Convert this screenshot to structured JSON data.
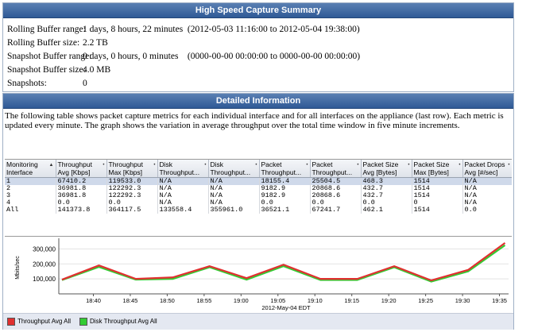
{
  "summary": {
    "title": "High Speed Capture Summary",
    "rows": [
      {
        "label": "Rolling Buffer range:",
        "value": "1 days, 8 hours, 22 minutes  (2012-05-03 11:16:00 to 2012-05-04 19:38:00)"
      },
      {
        "label": "Rolling Buffer size:",
        "value": "2.2 TB"
      },
      {
        "label": "Snapshot Buffer range:",
        "value": "0 days, 0 hours, 0 minutes    (0000-00-00 00:00:00 to 0000-00-00 00:00:00)"
      },
      {
        "label": "Snapshot Buffer size:",
        "value": "4.0 MB"
      },
      {
        "label": "Snapshots:",
        "value": "0"
      }
    ]
  },
  "detail": {
    "title": "Detailed Information",
    "description": "The following table shows packet capture metrics for each individual interface and for all interfaces on the appliance (last row). Each metric is updated every minute. The graph shows the variation in average throughput over the total time window in five minute increments."
  },
  "table": {
    "columns": [
      {
        "l1": "Monitoring",
        "l2": "Interface",
        "sort": "▲"
      },
      {
        "l1": "Throughput",
        "l2": "Avg [Kbps]",
        "sort": "•"
      },
      {
        "l1": "Throughput",
        "l2": "Max [Kbps]",
        "sort": "•"
      },
      {
        "l1": "Disk",
        "l2": "Throughput...",
        "sort": "•"
      },
      {
        "l1": "Disk",
        "l2": "Throughput...",
        "sort": "•"
      },
      {
        "l1": "Packet",
        "l2": "Throughput...",
        "sort": "•"
      },
      {
        "l1": "Packet",
        "l2": "Throughput...",
        "sort": "•"
      },
      {
        "l1": "Packet Size",
        "l2": "Avg [Bytes]",
        "sort": "•"
      },
      {
        "l1": "Packet Size",
        "l2": "Max [Bytes]",
        "sort": "•"
      },
      {
        "l1": "Packet Drops",
        "l2": "Avg [#/sec]",
        "sort": "•"
      }
    ],
    "rows": [
      [
        "1",
        "67410.2",
        "119533.0",
        "N/A",
        "N/A",
        "18155.4",
        "25504.5",
        "468.3",
        "1514",
        "N/A"
      ],
      [
        "2",
        "36981.8",
        "122292.3",
        "N/A",
        "N/A",
        "9182.9",
        "20868.6",
        "432.7",
        "1514",
        "N/A"
      ],
      [
        "3",
        "36981.8",
        "122292.3",
        "N/A",
        "N/A",
        "9182.9",
        "20868.6",
        "432.7",
        "1514",
        "N/A"
      ],
      [
        "4",
        "0.0",
        "0.0",
        "N/A",
        "N/A",
        "0.0",
        "0.0",
        "0.0",
        "0",
        "N/A"
      ],
      [
        "All",
        "141373.8",
        "364117.5",
        "133558.4",
        "355961.0",
        "36521.1",
        "67241.7",
        "462.1",
        "1514",
        "0.0"
      ]
    ]
  },
  "chart_data": {
    "type": "line",
    "xlabel": "2012-May-04 EDT",
    "ylabel": "Mbits/sec",
    "ylim": [
      0,
      350000
    ],
    "yticks": [
      100000,
      200000,
      300000
    ],
    "ytick_labels": [
      "100,000",
      "200,000",
      "300,000"
    ],
    "xticks": [
      "18:40",
      "18:45",
      "18:50",
      "18:55",
      "19:00",
      "19:05",
      "19:10",
      "19:15",
      "19:20",
      "19:25",
      "19:30",
      "19:35"
    ],
    "x": [
      "18:36",
      "18:41",
      "18:46",
      "18:51",
      "18:56",
      "19:01",
      "19:06",
      "19:11",
      "19:16",
      "19:21",
      "19:26",
      "19:31",
      "19:36"
    ],
    "series": [
      {
        "name": "Throughput Avg All",
        "color": "#e03030",
        "values": [
          95000,
          190000,
          100000,
          110000,
          185000,
          105000,
          195000,
          100000,
          100000,
          185000,
          90000,
          160000,
          340000
        ]
      },
      {
        "name": "Disk Throughput Avg All",
        "color": "#33cc33",
        "values": [
          92000,
          180000,
          95000,
          100000,
          178000,
          95000,
          185000,
          93000,
          93000,
          178000,
          82000,
          150000,
          325000
        ]
      }
    ],
    "grid": true,
    "legend": "bottom"
  }
}
